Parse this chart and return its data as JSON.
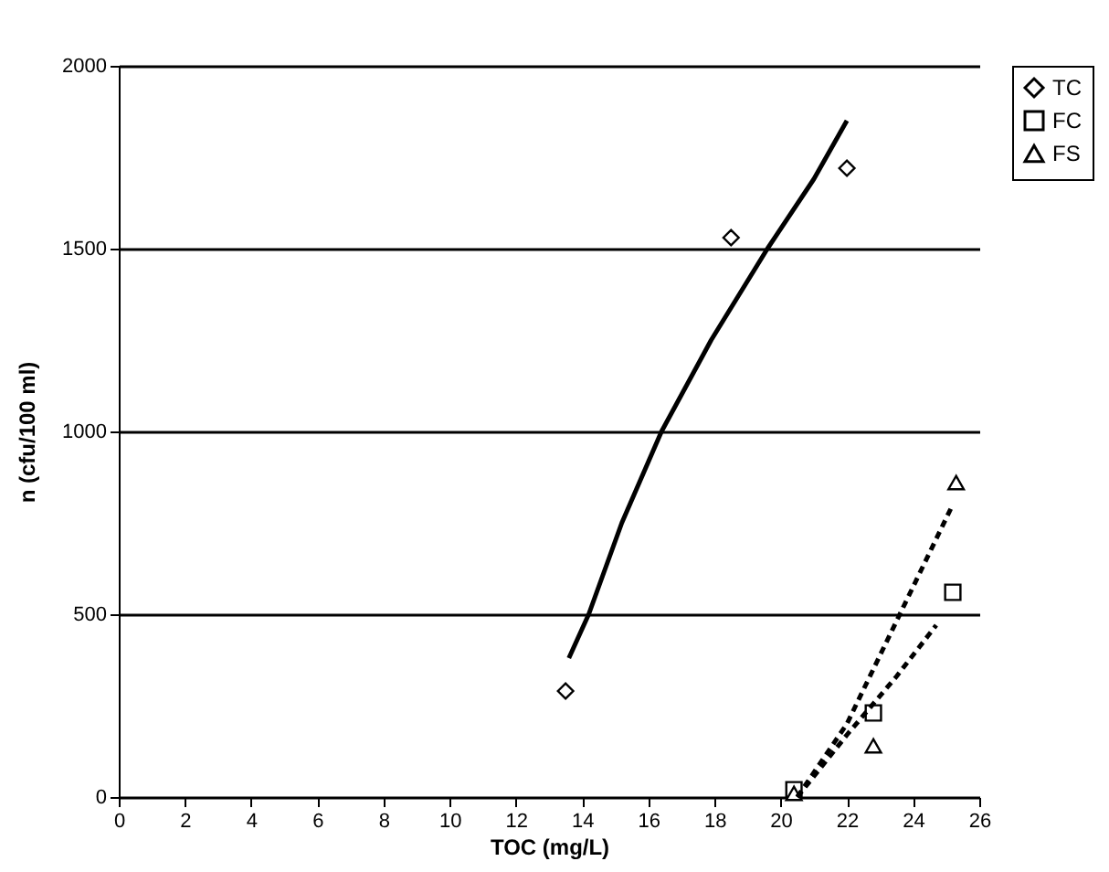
{
  "chart_data": {
    "type": "scatter",
    "xlabel": "TOC (mg/L)",
    "ylabel": "n (cfu/100 ml)",
    "xlim": [
      0,
      26
    ],
    "xticks": [
      0,
      2,
      4,
      6,
      8,
      10,
      12,
      14,
      16,
      18,
      20,
      22,
      24,
      26
    ],
    "ylim": [
      0,
      2000
    ],
    "yticks": [
      0,
      500,
      1000,
      1500,
      2000
    ],
    "grid": "y",
    "legend": "right",
    "series": [
      {
        "name": "TC",
        "marker": "diamond",
        "color": "#000000",
        "x": [
          13.5,
          18.5,
          22
        ],
        "values": [
          290,
          1530,
          1720
        ]
      },
      {
        "name": "FC",
        "marker": "square",
        "color": "#000000",
        "x": [
          20.4,
          22.8,
          25.2
        ],
        "values": [
          20,
          230,
          560
        ]
      },
      {
        "name": "FS",
        "marker": "triangle",
        "color": "#000000",
        "x": [
          20.4,
          22.8,
          25.3
        ],
        "values": [
          10,
          140,
          860
        ]
      },
      {
        "type": "line",
        "line_style": "solid",
        "color": "#000000",
        "x": [
          13.6,
          14.2,
          15.2,
          16.4,
          17.9,
          19.6,
          21,
          22
        ],
        "values": [
          380,
          500,
          750,
          1000,
          1250,
          1500,
          1690,
          1850
        ]
      },
      {
        "type": "line",
        "line_style": "dashed",
        "color": "#000000",
        "x": [
          20.5,
          22,
          23.5,
          24.7
        ],
        "values": [
          0,
          170,
          330,
          470
        ]
      },
      {
        "type": "line",
        "line_style": "dashed",
        "color": "#000000",
        "x": [
          20.5,
          22,
          23.6,
          25.2
        ],
        "values": [
          0,
          200,
          500,
          800
        ]
      }
    ]
  }
}
